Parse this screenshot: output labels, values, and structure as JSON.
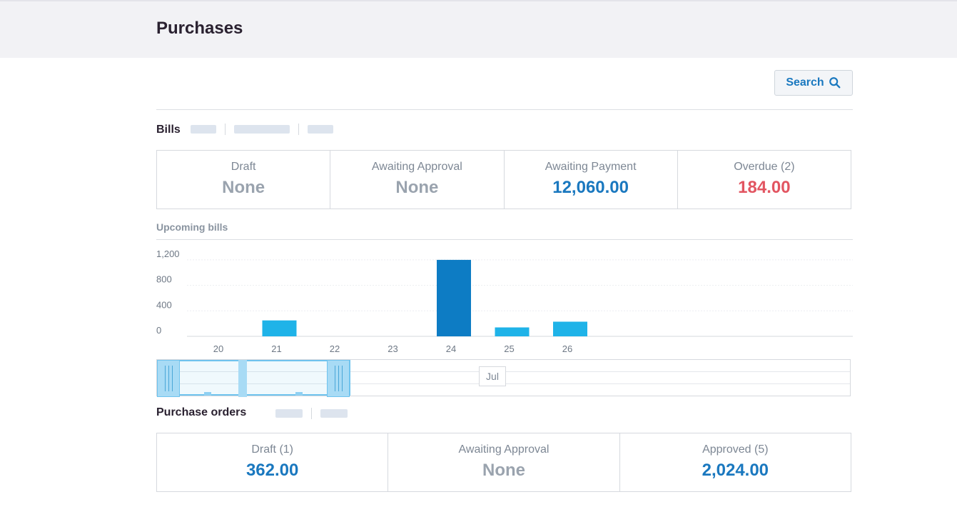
{
  "header": {
    "title": "Purchases"
  },
  "search": {
    "label": "Search"
  },
  "bills": {
    "title": "Bills",
    "stats": [
      {
        "label": "Draft",
        "value": "None",
        "tone": "none"
      },
      {
        "label": "Awaiting Approval",
        "value": "None",
        "tone": "none"
      },
      {
        "label": "Awaiting Payment",
        "value": "12,060.00",
        "tone": "blue"
      },
      {
        "label": "Overdue (2)",
        "value": "184.00",
        "tone": "red"
      }
    ]
  },
  "upcoming": {
    "title": "Upcoming bills",
    "navigator_label": "Jul"
  },
  "purchase_orders": {
    "title": "Purchase orders",
    "stats": [
      {
        "label": "Draft (1)",
        "value": "362.00",
        "tone": "blue"
      },
      {
        "label": "Awaiting Approval",
        "value": "None",
        "tone": "none"
      },
      {
        "label": "Approved (5)",
        "value": "2,024.00",
        "tone": "blue"
      }
    ]
  },
  "colors": {
    "accent": "#1a78bf",
    "bar": "#1fb3e8",
    "bar_highlight": "#0d7cc4",
    "overdue": "#e25561"
  },
  "chart_data": {
    "type": "bar",
    "categories": [
      "20",
      "21",
      "22",
      "23",
      "24",
      "25",
      "26"
    ],
    "values": [
      0,
      250,
      0,
      0,
      1200,
      140,
      230
    ],
    "highlight_index": 4,
    "yticks": [
      0,
      400,
      800,
      1200
    ],
    "ytick_labels": [
      "0",
      "400",
      "800",
      "1,200"
    ],
    "ylim": [
      0,
      1300
    ],
    "title": "",
    "xlabel": "",
    "ylabel": "",
    "grid": true,
    "legend": "none"
  }
}
